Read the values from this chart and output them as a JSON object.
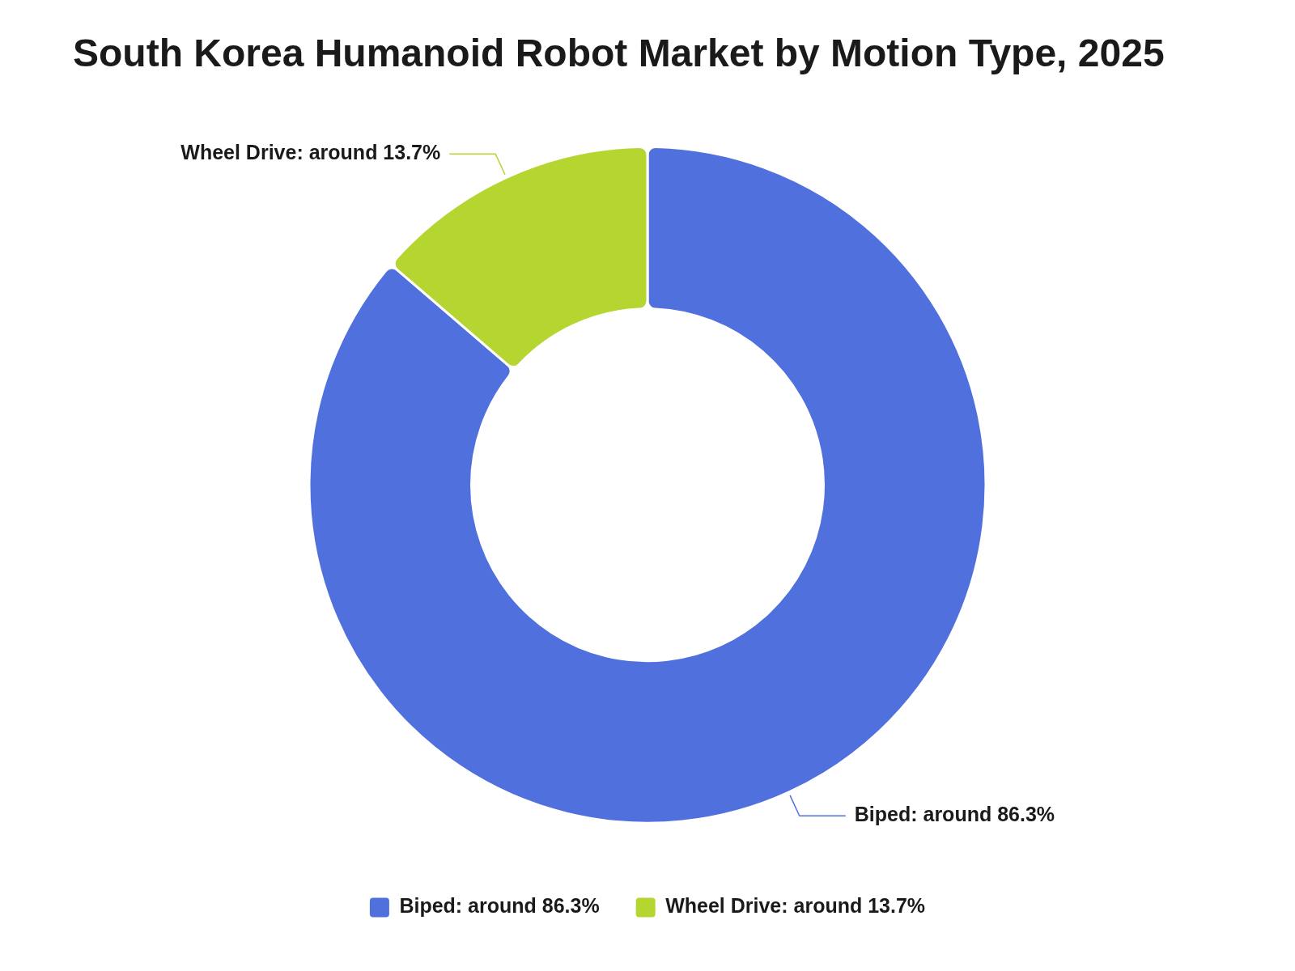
{
  "chart_data": {
    "type": "donut",
    "title": "South Korea Humanoid Robot Market by Motion Type, 2025",
    "categories": [
      "Biped: around 86.3%",
      "Wheel Drive: around 13.7%"
    ],
    "values": [
      86.3,
      13.7
    ],
    "colors": [
      "#5070de",
      "#b5d631"
    ],
    "legend": "bottom"
  }
}
